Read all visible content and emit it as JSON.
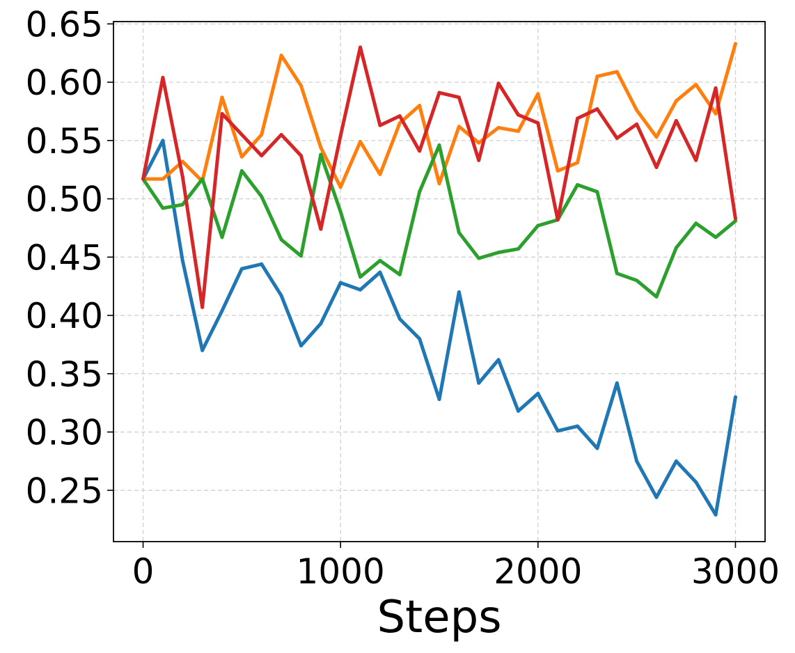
{
  "chart_data": {
    "type": "line",
    "title": "",
    "xlabel": "Steps",
    "ylabel": "",
    "xlim": [
      -150,
      3150
    ],
    "ylim": [
      0.206,
      0.652
    ],
    "xticks": [
      0,
      1000,
      2000,
      3000
    ],
    "xtick_labels": [
      "0",
      "1000",
      "2000",
      "3000"
    ],
    "yticks": [
      0.25,
      0.3,
      0.35,
      0.4,
      0.45,
      0.5,
      0.55,
      0.6,
      0.65
    ],
    "ytick_labels": [
      "0.25",
      "0.30",
      "0.35",
      "0.40",
      "0.45",
      "0.50",
      "0.55",
      "0.60",
      "0.65"
    ],
    "grid": true,
    "legend": "none",
    "x": [
      0,
      100,
      200,
      300,
      400,
      500,
      600,
      700,
      800,
      900,
      1000,
      1100,
      1200,
      1300,
      1400,
      1500,
      1600,
      1700,
      1800,
      1900,
      2000,
      2100,
      2200,
      2300,
      2400,
      2500,
      2600,
      2700,
      2800,
      2900,
      3000
    ],
    "series": [
      {
        "color": "#1f77b4",
        "values": [
          0.517,
          0.55,
          0.447,
          0.37,
          0.404,
          0.44,
          0.444,
          0.417,
          0.374,
          0.393,
          0.428,
          0.422,
          0.437,
          0.397,
          0.38,
          0.328,
          0.42,
          0.342,
          0.362,
          0.318,
          0.333,
          0.301,
          0.305,
          0.286,
          0.342,
          0.275,
          0.244,
          0.275,
          0.257,
          0.229,
          0.33
        ]
      },
      {
        "color": "#ff7f0e",
        "values": [
          0.517,
          0.517,
          0.532,
          0.515,
          0.587,
          0.536,
          0.555,
          0.623,
          0.597,
          0.544,
          0.51,
          0.549,
          0.521,
          0.565,
          0.58,
          0.513,
          0.562,
          0.548,
          0.561,
          0.558,
          0.59,
          0.524,
          0.531,
          0.605,
          0.609,
          0.576,
          0.553,
          0.584,
          0.598,
          0.573,
          0.633
        ]
      },
      {
        "color": "#2ca02c",
        "values": [
          0.517,
          0.492,
          0.495,
          0.517,
          0.467,
          0.524,
          0.502,
          0.465,
          0.451,
          0.538,
          0.489,
          0.433,
          0.447,
          0.435,
          0.506,
          0.546,
          0.471,
          0.449,
          0.454,
          0.457,
          0.477,
          0.482,
          0.512,
          0.506,
          0.436,
          0.43,
          0.416,
          0.458,
          0.479,
          0.467,
          0.481
        ]
      },
      {
        "color": "#d62728",
        "values": [
          0.517,
          0.604,
          0.519,
          0.407,
          0.573,
          0.555,
          0.537,
          0.555,
          0.537,
          0.474,
          0.554,
          0.63,
          0.563,
          0.571,
          0.541,
          0.591,
          0.587,
          0.533,
          0.599,
          0.572,
          0.565,
          0.482,
          0.569,
          0.577,
          0.552,
          0.564,
          0.527,
          0.567,
          0.533,
          0.595,
          0.483
        ]
      }
    ]
  }
}
